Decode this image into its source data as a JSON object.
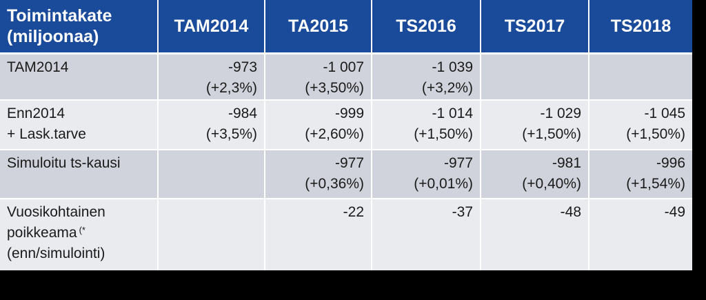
{
  "chart_data": {
    "type": "table",
    "header_label_lines": [
      "Toimintakate",
      "(miljoonaa)"
    ],
    "columns": [
      "TAM2014",
      "TA2015",
      "TS2016",
      "TS2017",
      "TS2018"
    ],
    "rows": [
      {
        "label_lines": [
          "TAM2014"
        ],
        "footnote": "",
        "cells": [
          {
            "value": "-973",
            "change": "(+2,3%)"
          },
          {
            "value": "-1 007",
            "change": "(+3,50%)"
          },
          {
            "value": "-1 039",
            "change": "(+3,2%)"
          },
          {
            "value": "",
            "change": ""
          },
          {
            "value": "",
            "change": ""
          }
        ]
      },
      {
        "label_lines": [
          "Enn2014",
          "+ Lask.tarve"
        ],
        "footnote": "",
        "cells": [
          {
            "value": "-984",
            "change": "(+3,5%)"
          },
          {
            "value": "-999",
            "change": "(+2,60%)"
          },
          {
            "value": "-1 014",
            "change": "(+1,50%)"
          },
          {
            "value": "-1 029",
            "change": "(+1,50%)"
          },
          {
            "value": "-1 045",
            "change": "(+1,50%)"
          }
        ]
      },
      {
        "label_lines": [
          "Simuloitu ts-kausi"
        ],
        "footnote": "",
        "cells": [
          {
            "value": "",
            "change": ""
          },
          {
            "value": "-977",
            "change": "(+0,36%)"
          },
          {
            "value": "-977",
            "change": "(+0,01%)"
          },
          {
            "value": "-981",
            "change": "(+0,40%)"
          },
          {
            "value": "-996",
            "change": "(+1,54%)"
          }
        ]
      },
      {
        "label_lines": [
          "Vuosikohtainen",
          "poikkeama",
          "(enn/simulointi)"
        ],
        "footnote": "(*",
        "cells": [
          {
            "value": "",
            "change": ""
          },
          {
            "value": "-22",
            "change": ""
          },
          {
            "value": "-37",
            "change": ""
          },
          {
            "value": "-48",
            "change": ""
          },
          {
            "value": "-49",
            "change": ""
          }
        ]
      }
    ]
  },
  "colors": {
    "header_bg": "#1a4a9a",
    "row_dark": "#d0d3dc",
    "row_light": "#e9ebef",
    "background": "#000000"
  }
}
